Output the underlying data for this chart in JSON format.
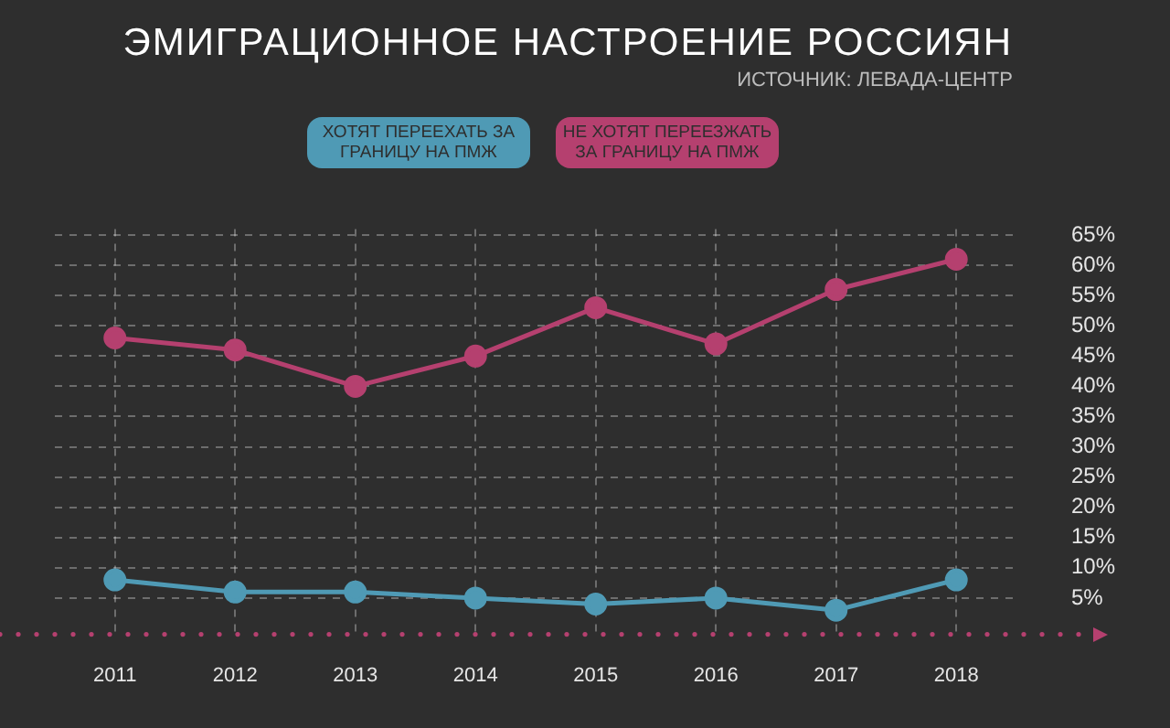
{
  "chart_data": {
    "type": "line",
    "title": "ЭМИГРАЦИОННОЕ НАСТРОЕНИЕ РОССИЯН",
    "subtitle": "ИСТОЧНИК: ЛЕВАДА-ЦЕНТР",
    "categories": [
      "2011",
      "2012",
      "2013",
      "2014",
      "2015",
      "2016",
      "2017",
      "2018"
    ],
    "series": [
      {
        "name": "ХОТЯТ ПЕРЕЕХАТЬ ЗА ГРАНИЦУ НА ПМЖ",
        "color": "#4f9ab5",
        "values": [
          8,
          6,
          6,
          5,
          4,
          5,
          3,
          8
        ]
      },
      {
        "name": "НЕ ХОТЯТ ПЕРЕЕЗЖАТЬ ЗА ГРАНИЦУ НА ПМЖ",
        "color": "#b5406f",
        "values": [
          48,
          46,
          40,
          45,
          53,
          47,
          56,
          61
        ]
      }
    ],
    "ylim": [
      -1,
      66
    ],
    "yticks": [
      {
        "value": 5,
        "label": "5%"
      },
      {
        "value": 10,
        "label": "10%"
      },
      {
        "value": 15,
        "label": "15%"
      },
      {
        "value": 20,
        "label": "20%"
      },
      {
        "value": 25,
        "label": "25%"
      },
      {
        "value": 30,
        "label": "30%"
      },
      {
        "value": 35,
        "label": "35%"
      },
      {
        "value": 40,
        "label": "40%"
      },
      {
        "value": 45,
        "label": "45%"
      },
      {
        "value": 50,
        "label": "50%"
      },
      {
        "value": 55,
        "label": "55%"
      },
      {
        "value": 60,
        "label": "60%"
      },
      {
        "value": 65,
        "label": "65%"
      }
    ],
    "grid": true,
    "legend": "top",
    "marker": "circle",
    "line_style": "solid"
  }
}
